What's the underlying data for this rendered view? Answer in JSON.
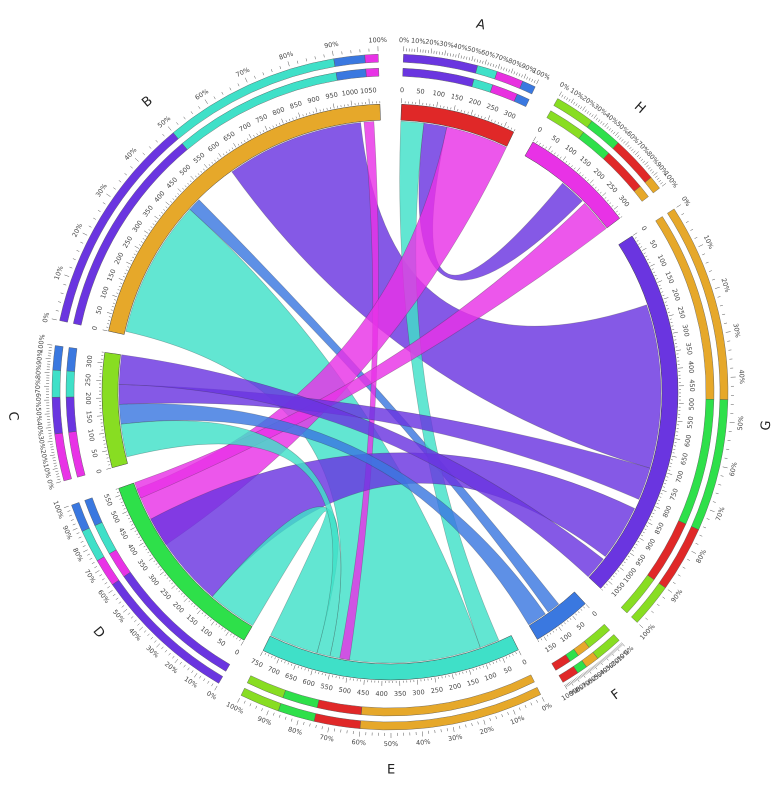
{
  "chart_data": {
    "type": "chord",
    "title": "",
    "segments": [
      {
        "name": "A",
        "total": 330,
        "color": "#e02828",
        "tick_step": 50,
        "composition": [
          {
            "color": "#6a35e0",
            "pct": 55
          },
          {
            "color": "#3fe0c8",
            "pct": 15
          },
          {
            "color": "#e830e0",
            "pct": 20
          },
          {
            "color": "#3a78e0",
            "pct": 10
          }
        ]
      },
      {
        "name": "H",
        "total": 330,
        "color": "#e832e6",
        "tick_step": 50,
        "composition": [
          {
            "color": "#88dd22",
            "pct": 30
          },
          {
            "color": "#2ee04a",
            "pct": 25
          },
          {
            "color": "#e02828",
            "pct": 35
          },
          {
            "color": "#e6a82a",
            "pct": 10
          }
        ]
      },
      {
        "name": "G",
        "total": 1080,
        "color": "#6a35e0",
        "tick_step": 50,
        "composition": [
          {
            "color": "#e6a82a",
            "pct": 45
          },
          {
            "color": "#2ee04a",
            "pct": 30
          },
          {
            "color": "#e02828",
            "pct": 15
          },
          {
            "color": "#88dd22",
            "pct": 10
          }
        ]
      },
      {
        "name": "F",
        "total": 170,
        "color": "#3a78e0",
        "tick_step": 50,
        "composition": [
          {
            "color": "#88dd22",
            "pct": 40
          },
          {
            "color": "#e6a82a",
            "pct": 20
          },
          {
            "color": "#2ee04a",
            "pct": 15
          },
          {
            "color": "#e02828",
            "pct": 25
          }
        ]
      },
      {
        "name": "E",
        "total": 750,
        "color": "#3fe0c8",
        "tick_step": 50,
        "composition": [
          {
            "color": "#e6a82a",
            "pct": 60
          },
          {
            "color": "#e02828",
            "pct": 15
          },
          {
            "color": "#2ee04a",
            "pct": 12
          },
          {
            "color": "#88dd22",
            "pct": 13
          }
        ]
      },
      {
        "name": "D",
        "total": 570,
        "color": "#2ee04a",
        "tick_step": 50,
        "composition": [
          {
            "color": "#6a35e0",
            "pct": 62
          },
          {
            "color": "#e832e6",
            "pct": 12
          },
          {
            "color": "#3fe0c8",
            "pct": 14
          },
          {
            "color": "#3a78e0",
            "pct": 12
          }
        ]
      },
      {
        "name": "C",
        "total": 330,
        "color": "#88dd22",
        "tick_step": 50,
        "composition": [
          {
            "color": "#e832e6",
            "pct": 35
          },
          {
            "color": "#6a35e0",
            "pct": 27
          },
          {
            "color": "#3fe0c8",
            "pct": 20
          },
          {
            "color": "#3a78e0",
            "pct": 18
          }
        ]
      },
      {
        "name": "B",
        "total": 1080,
        "color": "#e6a82a",
        "tick_step": 50,
        "composition": [
          {
            "color": "#6a35e0",
            "pct": 50
          },
          {
            "color": "#3fe0c8",
            "pct": 40
          },
          {
            "color": "#3a78e0",
            "pct": 7
          },
          {
            "color": "#e832e6",
            "pct": 3
          }
        ]
      }
    ],
    "links": [
      {
        "from": "B",
        "from_start": 600,
        "from_end": 1020,
        "to": "G",
        "to_start": 200,
        "to_end": 700,
        "color": "#6a35e0"
      },
      {
        "from": "B",
        "from_start": 10,
        "from_end": 430,
        "to": "E",
        "to_start": 100,
        "to_end": 560,
        "color": "#3fe0c8"
      },
      {
        "from": "B",
        "from_start": 430,
        "from_end": 470,
        "to": "F",
        "to_start": 60,
        "to_end": 100,
        "color": "#3a78e0"
      },
      {
        "from": "B",
        "from_start": 1030,
        "from_end": 1060,
        "to": "E",
        "to_start": 500,
        "to_end": 530,
        "color": "#e832e6"
      },
      {
        "from": "A",
        "from_start": 0,
        "from_end": 70,
        "to": "E",
        "to_start": 40,
        "to_end": 100,
        "color": "#3fe0c8"
      },
      {
        "from": "A",
        "from_start": 70,
        "from_end": 140,
        "to": "H",
        "to_start": 140,
        "to_end": 220,
        "color": "#6a35e0"
      },
      {
        "from": "A",
        "from_start": 140,
        "from_end": 330,
        "to": "D",
        "to_start": 360,
        "to_end": 550,
        "color": "#e832e6"
      },
      {
        "from": "H",
        "from_start": 230,
        "from_end": 330,
        "to": "D",
        "to_start": 520,
        "to_end": 570,
        "color": "#e832e6"
      },
      {
        "from": "G",
        "from_start": 700,
        "from_end": 800,
        "to": "C",
        "to_start": 180,
        "to_end": 240,
        "color": "#6a35e0"
      },
      {
        "from": "G",
        "from_start": 830,
        "from_end": 1000,
        "to": "D",
        "to_start": 150,
        "to_end": 450,
        "color": "#6a35e0"
      },
      {
        "from": "G",
        "from_start": 1010,
        "from_end": 1080,
        "to": "C",
        "to_start": 240,
        "to_end": 330,
        "color": "#6a35e0"
      },
      {
        "from": "F",
        "from_start": 110,
        "from_end": 170,
        "to": "C",
        "to_start": 120,
        "to_end": 180,
        "color": "#3a78e0"
      },
      {
        "from": "E",
        "from_start": 600,
        "from_end": 750,
        "to": "D",
        "to_start": 0,
        "to_end": 150,
        "color": "#3fe0c8"
      },
      {
        "from": "C",
        "from_start": 20,
        "from_end": 120,
        "to": "E",
        "to_start": 560,
        "to_end": 600,
        "color": "#3fe0c8"
      }
    ]
  }
}
